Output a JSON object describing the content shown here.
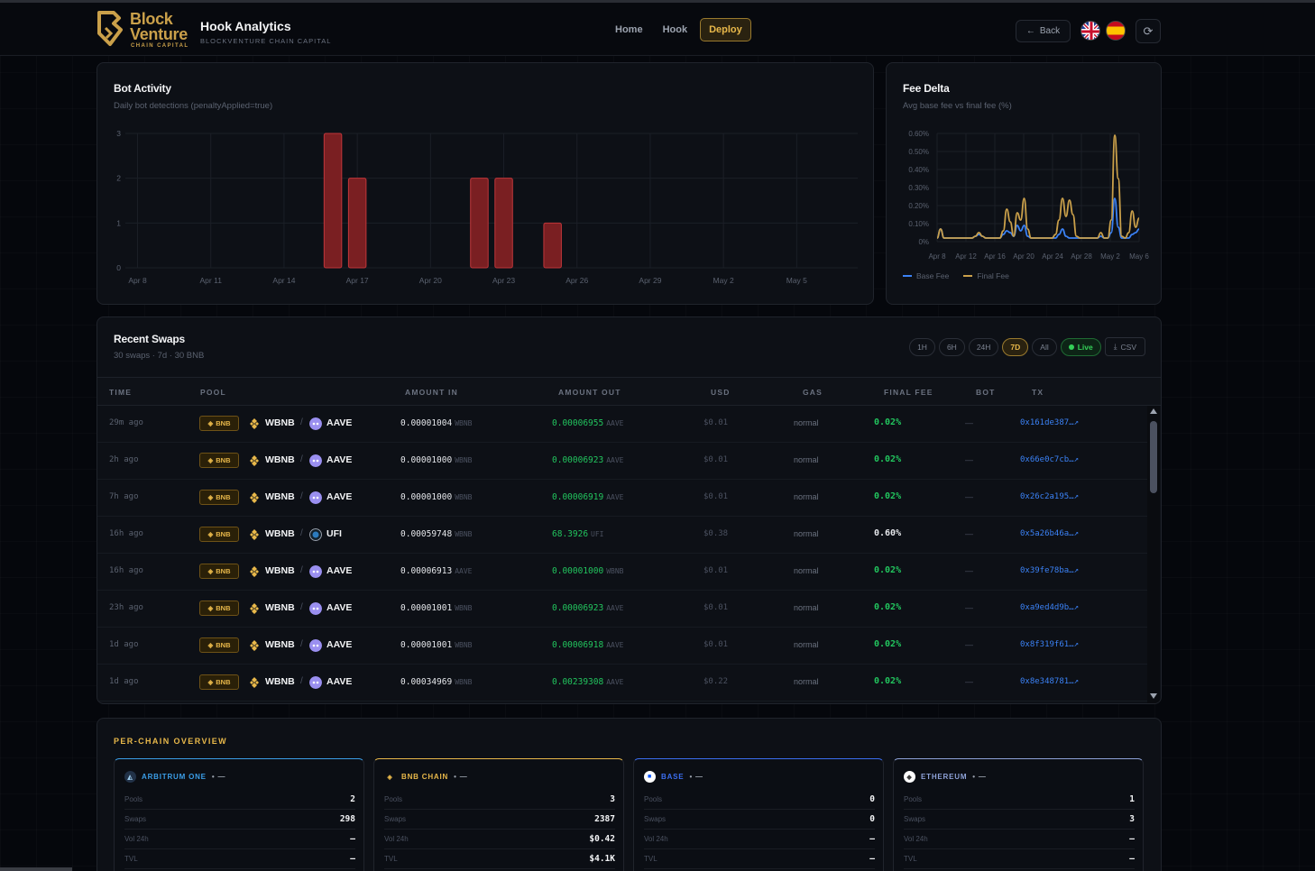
{
  "brand": {
    "line1": "Block",
    "line2": "Venture",
    "line3": "CHAIN CAPITAL"
  },
  "app": {
    "title": "Hook Analytics",
    "subtitle": "BLOCKVENTURE CHAIN CAPITAL"
  },
  "nav": {
    "items": [
      {
        "label": "Home"
      },
      {
        "label": "Hook"
      },
      {
        "label": "Deploy",
        "active": true
      }
    ]
  },
  "header": {
    "back_label": "Back"
  },
  "colors": {
    "accent": "#e8b84a",
    "bar": "#7a1f22",
    "bar_stroke": "#c0363a",
    "base_fee": "#3b82f6",
    "final_fee": "#caa04a",
    "positive": "#22c55e"
  },
  "bot_activity": {
    "title": "Bot Activity",
    "subtitle": "Daily bot detections (penaltyApplied=true)",
    "chart_data": {
      "type": "bar",
      "title": "Bot Activity",
      "categories": [
        "Apr 8",
        "Apr 9",
        "Apr 10",
        "Apr 11",
        "Apr 12",
        "Apr 13",
        "Apr 14",
        "Apr 15",
        "Apr 16",
        "Apr 17",
        "Apr 18",
        "Apr 19",
        "Apr 20",
        "Apr 21",
        "Apr 22",
        "Apr 23",
        "Apr 24",
        "Apr 25",
        "Apr 26",
        "Apr 27",
        "Apr 28",
        "Apr 29",
        "Apr 30",
        "May 1",
        "May 2",
        "May 3",
        "May 4",
        "May 5",
        "May 6",
        "May 7"
      ],
      "values": [
        0,
        0,
        0,
        0,
        0,
        0,
        0,
        0,
        3,
        2,
        0,
        0,
        0,
        0,
        2,
        2,
        0,
        1,
        0,
        0,
        0,
        0,
        0,
        0,
        0,
        0,
        0,
        0,
        0,
        0
      ],
      "xticks": [
        "Apr 8",
        "Apr 11",
        "Apr 14",
        "Apr 17",
        "Apr 20",
        "Apr 23",
        "Apr 26",
        "Apr 29",
        "May 2",
        "May 5"
      ],
      "yticks": [
        "0",
        "1",
        "2",
        "3"
      ],
      "ylim": [
        0,
        3
      ],
      "grid": true
    }
  },
  "fee_delta": {
    "title": "Fee Delta",
    "subtitle": "Avg base fee vs final fee (%)",
    "legend": [
      {
        "label": "Base Fee",
        "color": "#3b82f6"
      },
      {
        "label": "Final Fee",
        "color": "#caa04a"
      }
    ],
    "chart_data": {
      "type": "line",
      "title": "Fee Delta",
      "xticks": [
        "Apr 8",
        "Apr 12",
        "Apr 16",
        "Apr 20",
        "Apr 24",
        "Apr 28",
        "May 2",
        "May 6"
      ],
      "yticks": [
        "0%",
        "0.10%",
        "0.20%",
        "0.30%",
        "0.40%",
        "0.50%",
        "0.60%"
      ],
      "ylim": [
        0,
        0.6
      ],
      "x": [
        0,
        0.5,
        1,
        1.5,
        2,
        2.5,
        3,
        3.5,
        4,
        4.5,
        5,
        5.5,
        6,
        6.5,
        7,
        7.5,
        8,
        8.5,
        9,
        9.5,
        10,
        10.5,
        11,
        11.5,
        12,
        12.5,
        13,
        13.5,
        14,
        14.5,
        15,
        15.5,
        16,
        16.5,
        17,
        17.5,
        18,
        18.5,
        19,
        19.5,
        20,
        20.5,
        21,
        21.5,
        22,
        22.5,
        23,
        23.5,
        24,
        24.5,
        25,
        25.5,
        26,
        26.5,
        27,
        27.5,
        28,
        28.5,
        29
      ],
      "series": [
        {
          "name": "Base Fee",
          "values": [
            0.02,
            0.07,
            0.02,
            0.02,
            0.02,
            0.02,
            0.02,
            0.02,
            0.02,
            0.02,
            0.02,
            0.03,
            0.04,
            0.03,
            0.02,
            0.02,
            0.02,
            0.02,
            0.02,
            0.04,
            0.06,
            0.05,
            0.03,
            0.09,
            0.06,
            0.09,
            0.03,
            0.02,
            0.02,
            0.02,
            0.02,
            0.02,
            0.02,
            0.02,
            0.02,
            0.04,
            0.07,
            0.03,
            0.02,
            0.02,
            0.02,
            0.02,
            0.02,
            0.02,
            0.02,
            0.02,
            0.02,
            0.03,
            0.02,
            0.02,
            0.05,
            0.24,
            0.08,
            0.02,
            0.02,
            0.02,
            0.04,
            0.05,
            0.07
          ]
        },
        {
          "name": "Final Fee",
          "values": [
            0.02,
            0.07,
            0.02,
            0.02,
            0.02,
            0.02,
            0.02,
            0.02,
            0.02,
            0.02,
            0.02,
            0.03,
            0.05,
            0.03,
            0.02,
            0.02,
            0.02,
            0.02,
            0.02,
            0.06,
            0.18,
            0.11,
            0.03,
            0.16,
            0.12,
            0.24,
            0.07,
            0.02,
            0.02,
            0.02,
            0.02,
            0.02,
            0.02,
            0.02,
            0.04,
            0.12,
            0.24,
            0.14,
            0.23,
            0.15,
            0.03,
            0.02,
            0.02,
            0.02,
            0.02,
            0.02,
            0.02,
            0.05,
            0.02,
            0.02,
            0.12,
            0.59,
            0.35,
            0.03,
            0.02,
            0.05,
            0.17,
            0.08,
            0.13
          ]
        }
      ],
      "grid": true,
      "legend_position": "bottom-left"
    }
  },
  "swaps": {
    "title": "Recent Swaps",
    "subtitle": "30 swaps · 7d · 30 BNB",
    "filters": [
      {
        "label": "1H"
      },
      {
        "label": "6H"
      },
      {
        "label": "24H"
      },
      {
        "label": "7D",
        "active": true
      },
      {
        "label": "All"
      }
    ],
    "live_label": "Live",
    "csv_label": "CSV",
    "columns": [
      "TIME",
      "POOL",
      "AMOUNT IN",
      "AMOUNT OUT",
      "USD",
      "GAS",
      "FINAL FEE",
      "BOT",
      "TX"
    ],
    "rows": [
      {
        "time": "29m ago",
        "chain": "BNB",
        "tokenA": "WBNB",
        "tokenB": "AAVE",
        "tokenB_icon": "aave-icon",
        "in": "0.00001004",
        "in_unit": "WBNB",
        "out": "0.00006955",
        "out_unit": "AAVE",
        "usd": "$0.01",
        "gas": "normal",
        "fee": "0.02%",
        "fee_green": true,
        "bot": "—",
        "tx": "0x161de387…↗"
      },
      {
        "time": "2h ago",
        "chain": "BNB",
        "tokenA": "WBNB",
        "tokenB": "AAVE",
        "tokenB_icon": "aave-icon",
        "in": "0.00001000",
        "in_unit": "WBNB",
        "out": "0.00006923",
        "out_unit": "AAVE",
        "usd": "$0.01",
        "gas": "normal",
        "fee": "0.02%",
        "fee_green": true,
        "bot": "—",
        "tx": "0x66e0c7cb…↗"
      },
      {
        "time": "7h ago",
        "chain": "BNB",
        "tokenA": "WBNB",
        "tokenB": "AAVE",
        "tokenB_icon": "aave-icon",
        "in": "0.00001000",
        "in_unit": "WBNB",
        "out": "0.00006919",
        "out_unit": "AAVE",
        "usd": "$0.01",
        "gas": "normal",
        "fee": "0.02%",
        "fee_green": true,
        "bot": "—",
        "tx": "0x26c2a195…↗"
      },
      {
        "time": "16h ago",
        "chain": "BNB",
        "tokenA": "WBNB",
        "tokenB": "UFI",
        "tokenB_icon": "ufi-icon",
        "in": "0.00059748",
        "in_unit": "WBNB",
        "out": "68.3926",
        "out_unit": "UFI",
        "usd": "$0.38",
        "gas": "normal",
        "fee": "0.60%",
        "fee_green": false,
        "bot": "—",
        "tx": "0x5a26b46a…↗"
      },
      {
        "time": "16h ago",
        "chain": "BNB",
        "tokenA": "WBNB",
        "tokenB": "AAVE",
        "tokenB_icon": "aave-icon",
        "in": "0.00006913",
        "in_unit": "AAVE",
        "out": "0.00001000",
        "out_unit": "WBNB",
        "usd": "$0.01",
        "gas": "normal",
        "fee": "0.02%",
        "fee_green": true,
        "bot": "—",
        "tx": "0x39fe78ba…↗"
      },
      {
        "time": "23h ago",
        "chain": "BNB",
        "tokenA": "WBNB",
        "tokenB": "AAVE",
        "tokenB_icon": "aave-icon",
        "in": "0.00001001",
        "in_unit": "WBNB",
        "out": "0.00006923",
        "out_unit": "AAVE",
        "usd": "$0.01",
        "gas": "normal",
        "fee": "0.02%",
        "fee_green": true,
        "bot": "—",
        "tx": "0xa9ed4d9b…↗"
      },
      {
        "time": "1d ago",
        "chain": "BNB",
        "tokenA": "WBNB",
        "tokenB": "AAVE",
        "tokenB_icon": "aave-icon",
        "in": "0.00001001",
        "in_unit": "WBNB",
        "out": "0.00006918",
        "out_unit": "AAVE",
        "usd": "$0.01",
        "gas": "normal",
        "fee": "0.02%",
        "fee_green": true,
        "bot": "—",
        "tx": "0x8f319f61…↗"
      },
      {
        "time": "1d ago",
        "chain": "BNB",
        "tokenA": "WBNB",
        "tokenB": "AAVE",
        "tokenB_icon": "aave-icon",
        "in": "0.00034969",
        "in_unit": "WBNB",
        "out": "0.00239308",
        "out_unit": "AAVE",
        "usd": "$0.22",
        "gas": "normal",
        "fee": "0.02%",
        "fee_green": true,
        "bot": "—",
        "tx": "0x8e348781…↗"
      }
    ]
  },
  "per_chain": {
    "title": "PER-CHAIN OVERVIEW",
    "cards": [
      {
        "name": "ARBITRUM ONE",
        "status": "• —",
        "color": "#3b9ee8",
        "icon": "arbitrum-icon",
        "stats": [
          {
            "label": "Pools",
            "value": "2"
          },
          {
            "label": "Swaps",
            "value": "298"
          },
          {
            "label": "Vol 24h",
            "value": "—"
          },
          {
            "label": "TVL",
            "value": "—"
          }
        ]
      },
      {
        "name": "BNB CHAIN",
        "status": "• —",
        "color": "#e8b84a",
        "icon": "bnb-icon",
        "stats": [
          {
            "label": "Pools",
            "value": "3"
          },
          {
            "label": "Swaps",
            "value": "2387"
          },
          {
            "label": "Vol 24h",
            "value": "$0.42"
          },
          {
            "label": "TVL",
            "value": "$4.1K"
          }
        ]
      },
      {
        "name": "BASE",
        "status": "• —",
        "color": "#3b6ef0",
        "icon": "base-icon",
        "stats": [
          {
            "label": "Pools",
            "value": "0"
          },
          {
            "label": "Swaps",
            "value": "0"
          },
          {
            "label": "Vol 24h",
            "value": "—"
          },
          {
            "label": "TVL",
            "value": "—"
          }
        ]
      },
      {
        "name": "ETHEREUM",
        "status": "• —",
        "color": "#8ea2d8",
        "icon": "ethereum-icon",
        "stats": [
          {
            "label": "Pools",
            "value": "1"
          },
          {
            "label": "Swaps",
            "value": "3"
          },
          {
            "label": "Vol 24h",
            "value": "—"
          },
          {
            "label": "TVL",
            "value": "—"
          }
        ]
      }
    ]
  }
}
